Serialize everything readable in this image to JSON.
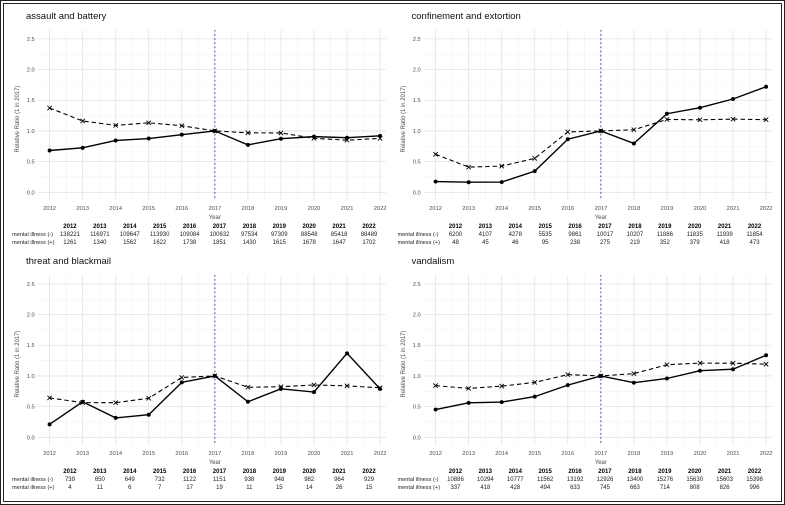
{
  "ui": {
    "y_axis_label": "Relative Ratio (1 in 2017)",
    "x_axis_label": "Year",
    "y_tick_labels": [
      "0.0",
      "0.5",
      "1.0",
      "1.5",
      "2.0",
      "2.5"
    ],
    "row_labels": [
      "mental illness (-)",
      "mental illness (+)"
    ],
    "colors": {
      "series_line": "#000000",
      "reference_line": "#3b55c0",
      "grid_major": "#e3e3e3",
      "grid_minor": "#f1f1f1",
      "axis_text": "#4d4d4d",
      "title_text": "#111111"
    }
  },
  "chart_data": [
    {
      "type": "line",
      "title": "assault and battery",
      "x": [
        "2012",
        "2013",
        "2014",
        "2015",
        "2016",
        "2017",
        "2018",
        "2019",
        "2020",
        "2021",
        "2022"
      ],
      "reference_x": "2017",
      "ylim": [
        0,
        2.5
      ],
      "series": [
        {
          "name": "mental illness (-)",
          "line_style": "dashed",
          "marker": "x",
          "counts": [
            138221,
            116971,
            109647,
            113930,
            109084,
            100632,
            97534,
            97309,
            88548,
            85418,
            88489
          ],
          "ratios": [
            1.374,
            1.162,
            1.09,
            1.132,
            1.084,
            1.0,
            0.969,
            0.967,
            0.88,
            0.849,
            0.879
          ]
        },
        {
          "name": "mental illness (+)",
          "line_style": "solid",
          "marker": "circle",
          "counts": [
            1261,
            1340,
            1562,
            1622,
            1738,
            1851,
            1430,
            1615,
            1678,
            1647,
            1702
          ],
          "ratios": [
            0.681,
            0.724,
            0.844,
            0.876,
            0.939,
            1.0,
            0.773,
            0.873,
            0.907,
            0.89,
            0.92
          ]
        }
      ]
    },
    {
      "type": "line",
      "title": "confinement and extortion",
      "x": [
        "2012",
        "2013",
        "2014",
        "2015",
        "2016",
        "2017",
        "2018",
        "2019",
        "2020",
        "2021",
        "2022"
      ],
      "reference_x": "2017",
      "ylim": [
        0,
        2.5
      ],
      "series": [
        {
          "name": "mental illness (-)",
          "line_style": "dashed",
          "marker": "x",
          "counts": [
            6200,
            4107,
            4278,
            5535,
            9861,
            10017,
            10207,
            11886,
            11835,
            11939,
            11854
          ],
          "ratios": [
            0.619,
            0.41,
            0.427,
            0.553,
            0.984,
            1.0,
            1.019,
            1.187,
            1.181,
            1.192,
            1.183
          ]
        },
        {
          "name": "mental illness (+)",
          "line_style": "solid",
          "marker": "circle",
          "counts": [
            48,
            45,
            46,
            95,
            238,
            275,
            219,
            352,
            379,
            418,
            473
          ],
          "ratios": [
            0.175,
            0.164,
            0.167,
            0.345,
            0.865,
            1.0,
            0.796,
            1.28,
            1.378,
            1.52,
            1.72
          ]
        }
      ]
    },
    {
      "type": "line",
      "title": "threat and blackmail",
      "x": [
        "2012",
        "2013",
        "2014",
        "2015",
        "2016",
        "2017",
        "2018",
        "2019",
        "2020",
        "2021",
        "2022"
      ],
      "reference_x": "2017",
      "ylim": [
        0,
        2.5
      ],
      "series": [
        {
          "name": "mental illness (-)",
          "line_style": "dashed",
          "marker": "x",
          "counts": [
            739,
            650,
            649,
            732,
            1122,
            1151,
            938,
            948,
            982,
            964,
            929
          ],
          "ratios": [
            0.642,
            0.565,
            0.564,
            0.636,
            0.975,
            1.0,
            0.815,
            0.824,
            0.853,
            0.838,
            0.807
          ]
        },
        {
          "name": "mental illness (+)",
          "line_style": "solid",
          "marker": "circle",
          "counts": [
            4,
            11,
            6,
            7,
            17,
            19,
            11,
            15,
            14,
            26,
            15
          ],
          "ratios": [
            0.211,
            0.579,
            0.316,
            0.368,
            0.895,
            1.0,
            0.579,
            0.789,
            0.737,
            1.368,
            0.789
          ]
        }
      ]
    },
    {
      "type": "line",
      "title": "vandalism",
      "x": [
        "2012",
        "2013",
        "2014",
        "2015",
        "2016",
        "2017",
        "2018",
        "2019",
        "2020",
        "2021",
        "2022"
      ],
      "reference_x": "2017",
      "ylim": [
        0,
        2.5
      ],
      "series": [
        {
          "name": "mental illness (-)",
          "line_style": "dashed",
          "marker": "x",
          "counts": [
            10886,
            10294,
            10777,
            11562,
            13192,
            12926,
            13400,
            15276,
            15630,
            15603,
            15398
          ],
          "ratios": [
            0.842,
            0.796,
            0.834,
            0.894,
            1.021,
            1.0,
            1.037,
            1.182,
            1.209,
            1.207,
            1.191
          ]
        },
        {
          "name": "mental illness (+)",
          "line_style": "solid",
          "marker": "circle",
          "counts": [
            337,
            418,
            428,
            494,
            633,
            745,
            663,
            714,
            808,
            826,
            996
          ],
          "ratios": [
            0.452,
            0.561,
            0.574,
            0.663,
            0.85,
            1.0,
            0.89,
            0.958,
            1.085,
            1.109,
            1.337
          ]
        }
      ]
    }
  ]
}
